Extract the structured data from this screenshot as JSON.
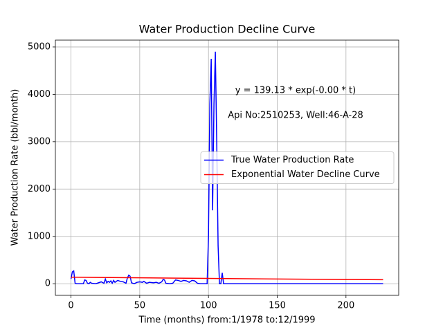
{
  "chart_data": {
    "type": "line",
    "title": "Water Production Decline Curve",
    "xlabel": "Time (months) from:1/1978 to:12/1999",
    "ylabel": "Water Production Rate (bbl/month)",
    "annotations": [
      "y = 139.13 * exp(-0.00 * t)",
      "Api No:2510253, Well:46-A-28"
    ],
    "xlim": [
      -11.35,
      238.35
    ],
    "xticks": [
      0,
      50,
      100,
      150,
      200
    ],
    "ylim": [
      -245,
      5145
    ],
    "yticks": [
      0,
      1000,
      2000,
      3000,
      4000,
      5000
    ],
    "grid": true,
    "legend": "center right",
    "series": [
      {
        "name": "True Water Production Rate",
        "color": "#0000ff",
        "x": [
          0,
          1,
          2,
          3,
          4,
          9,
          10,
          11,
          12,
          13,
          14,
          15,
          18,
          20,
          22,
          24,
          25,
          26,
          27,
          28,
          29,
          30,
          31,
          32,
          34,
          36,
          38,
          40,
          41,
          42,
          43,
          44,
          46,
          48,
          50,
          52,
          53,
          55,
          57,
          60,
          62,
          64,
          66,
          67,
          68,
          69,
          72,
          74,
          76,
          78,
          80,
          82,
          84,
          86,
          88,
          90,
          92,
          94,
          99,
          100,
          101,
          102,
          103,
          104,
          105,
          106,
          107,
          108,
          109,
          110,
          111,
          227
        ],
        "values": [
          100,
          250,
          270,
          10,
          0,
          0,
          80,
          70,
          10,
          0,
          30,
          10,
          0,
          20,
          40,
          10,
          100,
          20,
          50,
          30,
          60,
          10,
          70,
          30,
          70,
          50,
          40,
          10,
          120,
          180,
          160,
          20,
          0,
          30,
          40,
          30,
          50,
          10,
          30,
          20,
          30,
          10,
          40,
          90,
          80,
          10,
          0,
          10,
          80,
          70,
          50,
          70,
          60,
          30,
          70,
          60,
          10,
          0,
          0,
          1000,
          3800,
          4750,
          1550,
          3800,
          4900,
          3000,
          800,
          0,
          0,
          230,
          0,
          0
        ]
      },
      {
        "name": "Exponential Water Decline Curve",
        "color": "#ff0000",
        "x": [
          0,
          50,
          100,
          150,
          200,
          227
        ],
        "values": [
          139,
          125,
          112,
          100,
          90,
          85
        ]
      }
    ]
  }
}
